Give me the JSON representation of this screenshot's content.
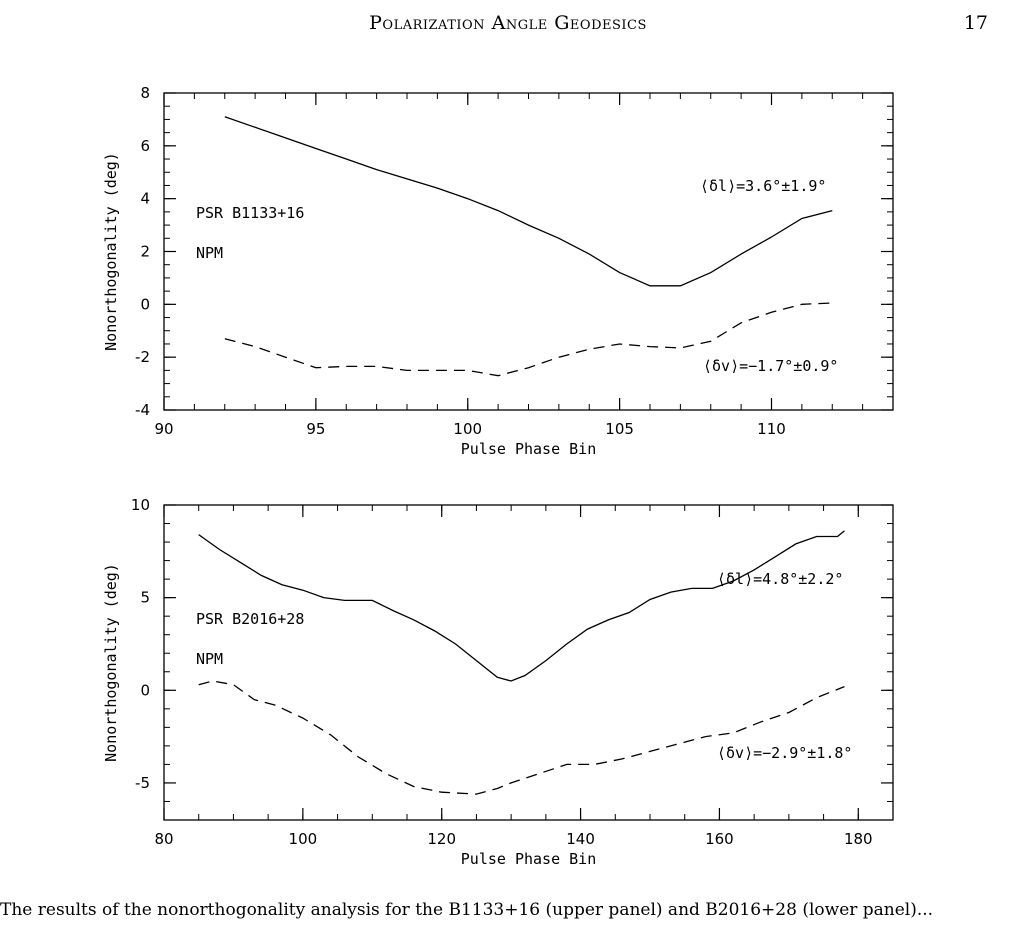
{
  "header": {
    "running_head": "Polarization Angle Geodesics",
    "page_number": "17"
  },
  "chart_data": [
    {
      "type": "line",
      "xlabel": "Pulse Phase Bin",
      "ylabel": "Nonorthogonality (deg)",
      "xlim": [
        90,
        114
      ],
      "ylim": [
        -4,
        8
      ],
      "x_ticks": [
        90,
        95,
        100,
        105,
        110
      ],
      "y_ticks": [
        -4,
        -2,
        0,
        2,
        4,
        6,
        8
      ],
      "annotations": [
        "PSR B1133+16",
        "NPM"
      ],
      "series": [
        {
          "style": "solid",
          "label": "⟨δl⟩=3.6°±1.9°",
          "x": [
            92,
            93,
            94,
            95,
            96,
            97,
            98,
            99,
            100,
            101,
            102,
            103,
            104,
            105,
            106,
            107,
            108,
            109,
            110,
            111,
            112
          ],
          "y": [
            7.1,
            6.7,
            6.3,
            5.9,
            5.5,
            5.1,
            4.75,
            4.4,
            4.0,
            3.55,
            3.0,
            2.5,
            1.9,
            1.2,
            0.7,
            0.7,
            1.2,
            1.9,
            2.55,
            3.25,
            3.55
          ]
        },
        {
          "style": "dashed",
          "label": "⟨δv⟩=−1.7°±0.9°",
          "x": [
            92,
            93,
            94,
            95,
            96,
            97,
            98,
            99,
            100,
            101,
            102,
            103,
            104,
            105,
            106,
            107,
            108,
            109,
            110,
            111,
            112
          ],
          "y": [
            -1.3,
            -1.6,
            -2.0,
            -2.4,
            -2.35,
            -2.35,
            -2.5,
            -2.5,
            -2.5,
            -2.7,
            -2.4,
            -2.0,
            -1.7,
            -1.5,
            -1.6,
            -1.65,
            -1.4,
            -0.7,
            -0.3,
            0.0,
            0.05
          ]
        }
      ]
    },
    {
      "type": "line",
      "xlabel": "Pulse Phase Bin",
      "ylabel": "Nonorthogonality (deg)",
      "xlim": [
        80,
        185
      ],
      "ylim": [
        -7,
        10
      ],
      "x_ticks": [
        80,
        100,
        120,
        140,
        160,
        180
      ],
      "y_ticks": [
        -5,
        0,
        5,
        10
      ],
      "annotations": [
        "PSR B2016+28",
        "NPM"
      ],
      "series": [
        {
          "style": "solid",
          "label": "⟨δl⟩=4.8°±2.2°",
          "x": [
            85,
            88,
            91,
            94,
            97,
            100,
            103,
            106,
            110,
            113,
            116,
            119,
            122,
            125,
            128,
            130,
            132,
            135,
            138,
            141,
            144,
            147,
            150,
            153,
            156,
            159,
            162,
            165,
            168,
            171,
            174,
            177,
            178
          ],
          "y": [
            8.4,
            7.6,
            6.9,
            6.2,
            5.7,
            5.4,
            5.0,
            4.85,
            4.85,
            4.3,
            3.8,
            3.2,
            2.5,
            1.6,
            0.7,
            0.5,
            0.8,
            1.6,
            2.5,
            3.3,
            3.8,
            4.2,
            4.9,
            5.3,
            5.5,
            5.5,
            5.9,
            6.5,
            7.2,
            7.9,
            8.3,
            8.3,
            8.6
          ]
        },
        {
          "style": "dashed",
          "label": "⟨δv⟩=−2.9°±1.8°",
          "x": [
            85,
            87,
            90,
            93,
            96,
            100,
            104,
            108,
            112,
            116,
            120,
            125,
            128,
            130,
            134,
            138,
            142,
            146,
            150,
            154,
            158,
            162,
            166,
            170,
            174,
            178
          ],
          "y": [
            0.3,
            0.5,
            0.3,
            -0.5,
            -0.8,
            -1.5,
            -2.4,
            -3.6,
            -4.5,
            -5.2,
            -5.5,
            -5.6,
            -5.3,
            -5.0,
            -4.5,
            -4.0,
            -4.0,
            -3.7,
            -3.3,
            -2.9,
            -2.5,
            -2.3,
            -1.7,
            -1.2,
            -0.4,
            0.2
          ]
        }
      ]
    }
  ],
  "caption": {
    "text": "The results of the nonorthogonality analysis for the B1133+16 (upper panel) and B2016+28 (lower panel)..."
  }
}
